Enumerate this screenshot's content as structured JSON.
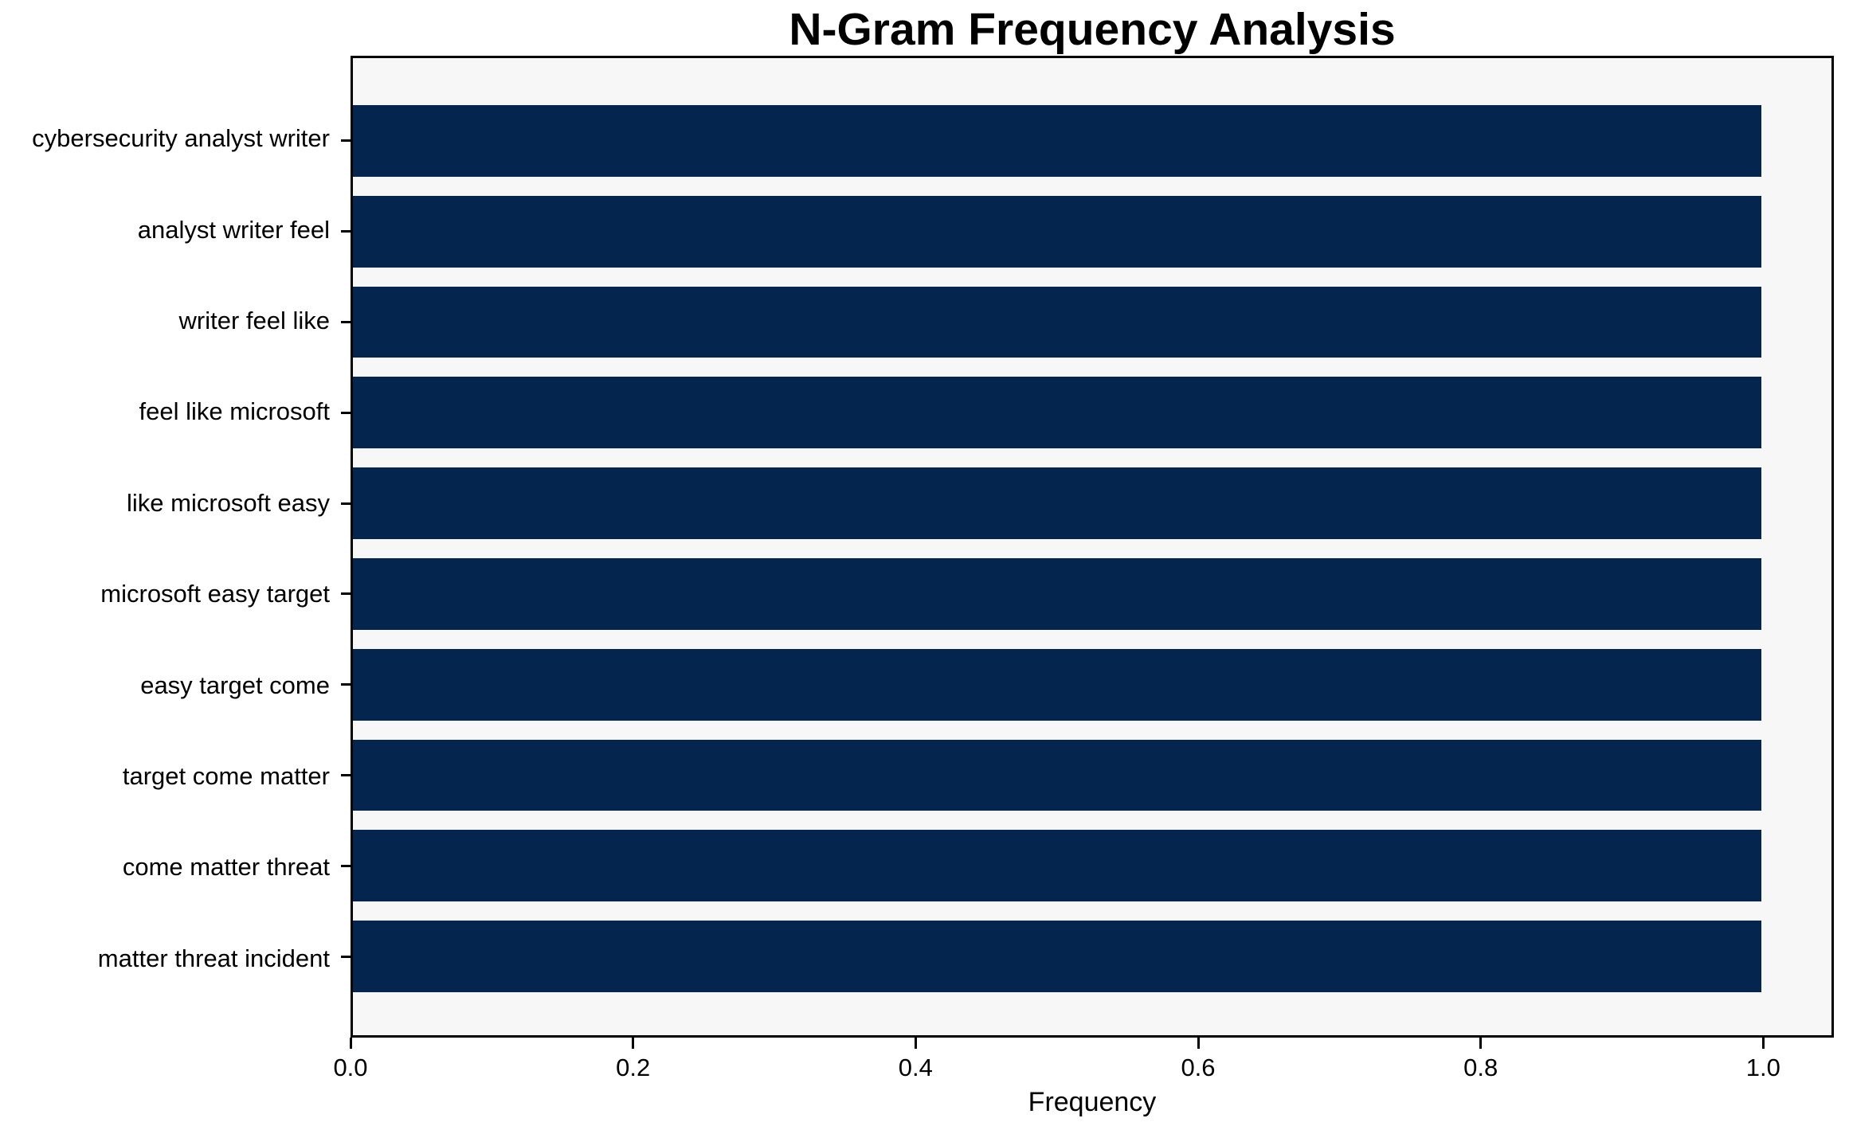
{
  "chart_data": {
    "type": "bar",
    "orientation": "horizontal",
    "title": "N-Gram Frequency Analysis",
    "xlabel": "Frequency",
    "ylabel": "",
    "categories": [
      "cybersecurity analyst writer",
      "analyst writer feel",
      "writer feel like",
      "feel like microsoft",
      "like microsoft easy",
      "microsoft easy target",
      "easy target come",
      "target come matter",
      "come matter threat",
      "matter threat incident"
    ],
    "values": [
      1.0,
      1.0,
      1.0,
      1.0,
      1.0,
      1.0,
      1.0,
      1.0,
      1.0,
      1.0
    ],
    "x_ticks": [
      {
        "label": "0.0",
        "value": 0.0
      },
      {
        "label": "0.2",
        "value": 0.2
      },
      {
        "label": "0.4",
        "value": 0.4
      },
      {
        "label": "0.6",
        "value": 0.6
      },
      {
        "label": "0.8",
        "value": 0.8
      },
      {
        "label": "1.0",
        "value": 1.0
      }
    ],
    "xlim": [
      0,
      1.05
    ],
    "grid": false,
    "legend": null,
    "colors": {
      "bar": "#04254d",
      "plot_background": "#f7f7f7",
      "figure_background": "#ffffff",
      "spine": "#000000",
      "text": "#000000"
    }
  }
}
